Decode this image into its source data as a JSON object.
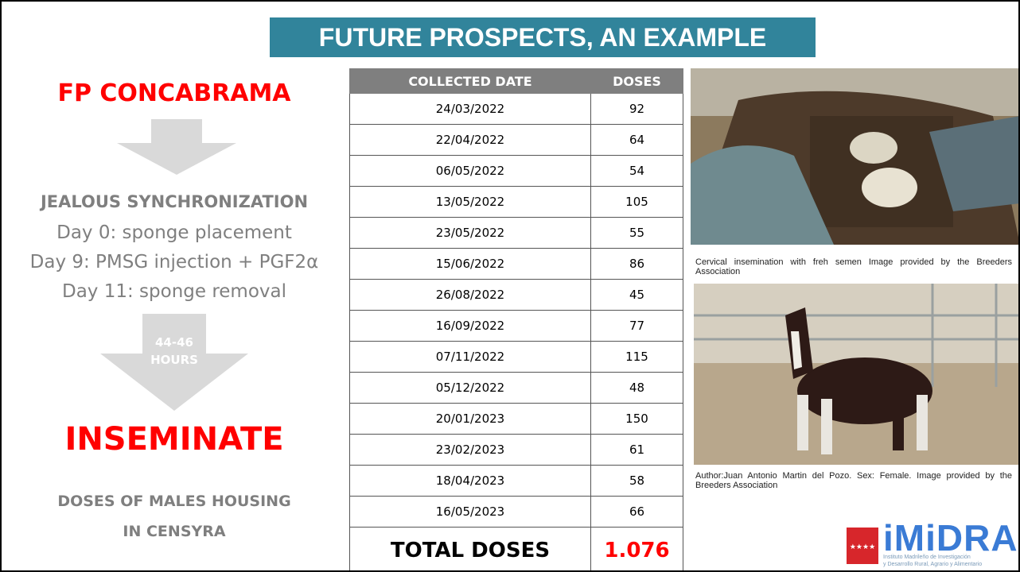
{
  "header": {
    "title": "FUTURE PROSPECTS, AN EXAMPLE"
  },
  "left": {
    "heading": "FP CONCABRAMA",
    "protocol_title": "JEALOUS SYNCHRONIZATION",
    "protocol_steps": [
      "Day 0: sponge placement",
      "Day 9: PMSG injection + PGF2α",
      "Day 11: sponge removal"
    ],
    "interval": [
      "44-46",
      "HOURS"
    ],
    "action": "INSEMINATE",
    "note": [
      "DOSES OF MALES HOUSING",
      "IN CENSYRA"
    ]
  },
  "table": {
    "columns": [
      "COLLECTED DATE",
      "DOSES"
    ],
    "rows": [
      [
        "24/03/2022",
        92
      ],
      [
        "22/04/2022",
        64
      ],
      [
        "06/05/2022",
        54
      ],
      [
        "13/05/2022",
        105
      ],
      [
        "23/05/2022",
        55
      ],
      [
        "15/06/2022",
        86
      ],
      [
        "26/08/2022",
        45
      ],
      [
        "16/09/2022",
        77
      ],
      [
        "07/11/2022",
        115
      ],
      [
        "05/12/2022",
        48
      ],
      [
        "20/01/2023",
        150
      ],
      [
        "23/02/2023",
        61
      ],
      [
        "18/04/2023",
        58
      ],
      [
        "16/05/2023",
        66
      ]
    ],
    "total": [
      "TOTAL DOSES",
      "1.076"
    ]
  },
  "images": [
    {
      "caption": "Cervical insemination with freh semen Image provided by the Breeders Association"
    },
    {
      "caption": "Author:Juan Antonio Martin del Pozo. Sex: Female. Image provided by the Breeders Association"
    }
  ],
  "logo": {
    "name": "iMiDRA",
    "subtitle": [
      "Instituto Madrileño de Investigación",
      "y Desarrollo Rural, Agrario y Alimentario"
    ]
  }
}
